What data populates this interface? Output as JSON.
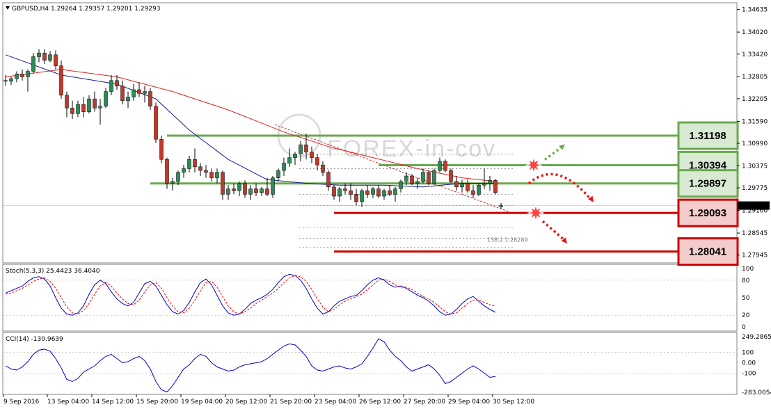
{
  "chart_data": [
    {
      "type": "candlestick",
      "header": "GBPUSD,H4  1.29264 1.29357 1.29201 1.29293",
      "y_ticks": [
        "1.34635",
        "1.34020",
        "1.33420",
        "1.32805",
        "1.32205",
        "1.31590",
        "1.30990",
        "1.30375",
        "1.29775",
        "1.29160",
        "1.28545",
        "1.27945"
      ],
      "ylim": [
        1.2775,
        1.3478
      ],
      "current_price": "1.29293",
      "x_labels": [
        "9 Sep 2016",
        "13 Sep 04:00",
        "14 Sep 12:00",
        "15 Sep 20:00",
        "19 Sep 04:00",
        "20 Sep 12:00",
        "21 Sep 20:00",
        "23 Sep 04:00",
        "26 Sep 12:00",
        "27 Sep 20:00",
        "29 Sep 04:00",
        "30 Sep 12:00"
      ],
      "candles": [
        [
          1.327,
          1.3285,
          1.3255,
          1.3268
        ],
        [
          1.3268,
          1.328,
          1.3258,
          1.3275
        ],
        [
          1.3275,
          1.3295,
          1.3265,
          1.3288
        ],
        [
          1.3288,
          1.33,
          1.327,
          1.328
        ],
        [
          1.328,
          1.33,
          1.324,
          1.3295
        ],
        [
          1.3295,
          1.3345,
          1.329,
          1.3335
        ],
        [
          1.3335,
          1.3355,
          1.332,
          1.3345
        ],
        [
          1.3345,
          1.3355,
          1.3315,
          1.3325
        ],
        [
          1.3325,
          1.335,
          1.332,
          1.334
        ],
        [
          1.334,
          1.3352,
          1.33,
          1.331
        ],
        [
          1.331,
          1.3325,
          1.322,
          1.323
        ],
        [
          1.323,
          1.324,
          1.317,
          1.3195
        ],
        [
          1.3195,
          1.3215,
          1.3165,
          1.318
        ],
        [
          1.318,
          1.3215,
          1.317,
          1.3205
        ],
        [
          1.3205,
          1.3225,
          1.317,
          1.3185
        ],
        [
          1.3185,
          1.323,
          1.318,
          1.322
        ],
        [
          1.322,
          1.324,
          1.3185,
          1.3195
        ],
        [
          1.3195,
          1.322,
          1.315,
          1.32
        ],
        [
          1.32,
          1.325,
          1.3195,
          1.324
        ],
        [
          1.324,
          1.3285,
          1.323,
          1.327
        ],
        [
          1.327,
          1.3285,
          1.3245,
          1.3255
        ],
        [
          1.3255,
          1.327,
          1.3205,
          1.3215
        ],
        [
          1.3215,
          1.324,
          1.3195,
          1.3225
        ],
        [
          1.3225,
          1.326,
          1.3215,
          1.3245
        ],
        [
          1.3245,
          1.3265,
          1.3225,
          1.3235
        ],
        [
          1.3235,
          1.3255,
          1.321,
          1.324
        ],
        [
          1.324,
          1.325,
          1.319,
          1.32
        ],
        [
          1.32,
          1.321,
          1.31,
          1.311
        ],
        [
          1.311,
          1.312,
          1.3045,
          1.3055
        ],
        [
          1.3055,
          1.306,
          1.2975,
          1.299
        ],
        [
          1.299,
          1.3005,
          1.297,
          1.2995
        ],
        [
          1.2995,
          1.3025,
          1.2985,
          1.302
        ],
        [
          1.302,
          1.304,
          1.3005,
          1.303
        ],
        [
          1.303,
          1.3065,
          1.302,
          1.3055
        ],
        [
          1.3055,
          1.3085,
          1.302,
          1.3035
        ],
        [
          1.3035,
          1.3045,
          1.301,
          1.3025
        ],
        [
          1.3025,
          1.304,
          1.3005,
          1.302
        ],
        [
          1.302,
          1.303,
          1.2995,
          1.3005
        ],
        [
          1.3005,
          1.303,
          1.299,
          1.302
        ],
        [
          1.302,
          1.3025,
          1.2945,
          1.296
        ],
        [
          1.296,
          1.2985,
          1.2945,
          1.2975
        ],
        [
          1.2975,
          1.299,
          1.296,
          1.297
        ],
        [
          1.297,
          1.2995,
          1.2955,
          1.299
        ],
        [
          1.299,
          1.2998,
          1.295,
          1.296
        ],
        [
          1.296,
          1.2985,
          1.2945,
          1.2975
        ],
        [
          1.2975,
          1.299,
          1.2955,
          1.2965
        ],
        [
          1.2965,
          1.298,
          1.2955,
          1.2975
        ],
        [
          1.2975,
          1.3005,
          1.2955,
          1.296
        ],
        [
          1.296,
          1.301,
          1.295,
          1.3005
        ],
        [
          1.3005,
          1.303,
          1.2995,
          1.3025
        ],
        [
          1.3025,
          1.306,
          1.301,
          1.3045
        ],
        [
          1.3045,
          1.3085,
          1.3035,
          1.306
        ],
        [
          1.306,
          1.3075,
          1.304,
          1.307
        ],
        [
          1.307,
          1.3105,
          1.305,
          1.3095
        ],
        [
          1.3095,
          1.3125,
          1.3055,
          1.3075
        ],
        [
          1.3075,
          1.309,
          1.3045,
          1.306
        ],
        [
          1.306,
          1.307,
          1.3025,
          1.304
        ],
        [
          1.304,
          1.305,
          1.301,
          1.302
        ],
        [
          1.302,
          1.3025,
          1.297,
          1.298
        ],
        [
          1.298,
          1.2985,
          1.2945,
          1.2955
        ],
        [
          1.2955,
          1.298,
          1.294,
          1.2975
        ],
        [
          1.2975,
          1.299,
          1.296,
          1.297
        ],
        [
          1.297,
          1.299,
          1.2945,
          1.296
        ],
        [
          1.296,
          1.2975,
          1.293,
          1.294
        ],
        [
          1.294,
          1.2975,
          1.2925,
          1.297
        ],
        [
          1.297,
          1.2985,
          1.295,
          1.296
        ],
        [
          1.296,
          1.298,
          1.295,
          1.2975
        ],
        [
          1.2975,
          1.2985,
          1.295,
          1.2955
        ],
        [
          1.2955,
          1.2975,
          1.2945,
          1.297
        ],
        [
          1.297,
          1.2985,
          1.2955,
          1.296
        ],
        [
          1.296,
          1.298,
          1.294,
          1.2975
        ],
        [
          1.2975,
          1.3,
          1.2965,
          1.2995
        ],
        [
          1.2995,
          1.302,
          1.2985,
          1.301
        ],
        [
          1.301,
          1.3015,
          1.2985,
          1.299
        ],
        [
          1.299,
          1.3005,
          1.2975,
          1.2995
        ],
        [
          1.2995,
          1.303,
          1.299,
          1.302
        ],
        [
          1.302,
          1.3025,
          1.2985,
          1.299
        ],
        [
          1.299,
          1.303,
          1.2985,
          1.3025
        ],
        [
          1.3025,
          1.306,
          1.302,
          1.305
        ],
        [
          1.305,
          1.3055,
          1.302,
          1.3025
        ],
        [
          1.3025,
          1.303,
          1.299,
          1.2995
        ],
        [
          1.2995,
          1.301,
          1.297,
          1.298
        ],
        [
          1.298,
          1.3,
          1.2965,
          1.299
        ],
        [
          1.299,
          1.3,
          1.2965,
          1.297
        ],
        [
          1.297,
          1.2985,
          1.295,
          1.296
        ],
        [
          1.296,
          1.299,
          1.2955,
          1.2985
        ],
        [
          1.2985,
          1.303,
          1.2975,
          1.299
        ],
        [
          1.299,
          1.301,
          1.297,
          1.2998
        ],
        [
          1.2998,
          1.3002,
          1.296,
          1.2965
        ],
        [
          1.2926,
          1.2936,
          1.292,
          1.2929
        ]
      ],
      "ma_blue": [
        [
          0,
          1.334
        ],
        [
          10,
          1.3285
        ],
        [
          20,
          1.326
        ],
        [
          27,
          1.322
        ],
        [
          33,
          1.3135
        ],
        [
          40,
          1.3055
        ],
        [
          47,
          1.3
        ],
        [
          54,
          1.299
        ],
        [
          60,
          1.2985
        ],
        [
          68,
          1.2985
        ],
        [
          75,
          1.298
        ],
        [
          82,
          1.299
        ],
        [
          88,
          1.299
        ]
      ],
      "ma_red": [
        [
          0,
          1.328
        ],
        [
          10,
          1.33
        ],
        [
          20,
          1.328
        ],
        [
          30,
          1.324
        ],
        [
          40,
          1.319
        ],
        [
          50,
          1.313
        ],
        [
          58,
          1.309
        ],
        [
          66,
          1.306
        ],
        [
          74,
          1.303
        ],
        [
          82,
          1.3005
        ],
        [
          88,
          1.2995
        ]
      ],
      "levels": [
        {
          "label": "1.31198",
          "value": 1.31198,
          "color": "#6aa84f",
          "from": 29
        },
        {
          "label": "1.30394",
          "value": 1.30394,
          "color": "#6aa84f",
          "from": 67
        },
        {
          "label": "1.29897",
          "value": 1.29897,
          "color": "#6aa84f",
          "from": 26
        },
        {
          "label": "1.29093",
          "value": 1.29093,
          "color": "#cc0000",
          "from": 59
        },
        {
          "label": "1.28041",
          "value": 1.28041,
          "color": "#cc0000",
          "from": 59
        }
      ],
      "fib_lines": [
        1.307,
        1.303,
        1.296,
        1.293,
        1.287,
        1.284,
        1.2815
      ],
      "fib_text": "138.2  1.28289",
      "watermark": "FOREX-in-cov"
    },
    {
      "type": "line",
      "title": "Stoch(5,3,3) 25.4423 36.4040",
      "y_ticks": [
        "100",
        "80",
        "50",
        "20",
        "0"
      ],
      "ylim": [
        0,
        100
      ],
      "series": [
        {
          "color": "#0000cc",
          "values": [
            58,
            62,
            66,
            70,
            78,
            84,
            86,
            82,
            70,
            50,
            32,
            22,
            20,
            24,
            36,
            56,
            72,
            80,
            74,
            60,
            48,
            40,
            36,
            42,
            58,
            74,
            78,
            70,
            54,
            38,
            26,
            22,
            28,
            42,
            60,
            76,
            82,
            72,
            54,
            36,
            24,
            20,
            22,
            30,
            40,
            46,
            50,
            56,
            64,
            76,
            86,
            90,
            88,
            80,
            66,
            48,
            32,
            22,
            26,
            36,
            44,
            48,
            52,
            54,
            62,
            72,
            80,
            84,
            80,
            72,
            68,
            70,
            66,
            60,
            54,
            50,
            44,
            36,
            26,
            20,
            22,
            30,
            40,
            48,
            52,
            44,
            36,
            30,
            25
          ]
        },
        {
          "color": "#ff0000",
          "dashed": true,
          "values": [
            56,
            58,
            62,
            66,
            72,
            78,
            82,
            84,
            78,
            66,
            50,
            34,
            24,
            22,
            28,
            40,
            56,
            70,
            76,
            70,
            58,
            48,
            40,
            38,
            46,
            60,
            72,
            76,
            66,
            50,
            36,
            26,
            24,
            32,
            46,
            62,
            76,
            78,
            68,
            52,
            36,
            26,
            22,
            26,
            32,
            40,
            46,
            52,
            58,
            66,
            76,
            84,
            88,
            86,
            78,
            64,
            48,
            34,
            26,
            30,
            38,
            44,
            48,
            52,
            56,
            64,
            72,
            80,
            82,
            78,
            72,
            68,
            68,
            64,
            58,
            52,
            48,
            42,
            34,
            26,
            22,
            24,
            32,
            40,
            46,
            46,
            42,
            38,
            36
          ]
        }
      ]
    },
    {
      "type": "line",
      "title": "CCI(14) -130.9639",
      "y_ticks": [
        "249.2865",
        "100",
        "0.00",
        "-100",
        "-283.0054"
      ],
      "ylim": [
        -283.0054,
        249.2865
      ],
      "series": [
        {
          "color": "#0000cc",
          "values": [
            -30,
            -60,
            -70,
            -40,
            10,
            80,
            120,
            130,
            110,
            40,
            -50,
            -160,
            -180,
            -150,
            -90,
            -60,
            -30,
            20,
            60,
            80,
            40,
            0,
            10,
            40,
            60,
            20,
            -60,
            -180,
            -260,
            -280,
            -220,
            -140,
            -60,
            -20,
            40,
            80,
            60,
            0,
            -40,
            -60,
            -80,
            -70,
            -40,
            -20,
            -10,
            0,
            10,
            40,
            80,
            120,
            160,
            180,
            170,
            120,
            60,
            -30,
            -70,
            -80,
            -60,
            -40,
            -30,
            -50,
            -60,
            -40,
            -10,
            60,
            140,
            230,
            200,
            120,
            60,
            20,
            -40,
            -80,
            -60,
            -40,
            -20,
            -60,
            -120,
            -200,
            -180,
            -140,
            -100,
            -60,
            -30,
            -60,
            -100,
            -140,
            -131
          ]
        }
      ]
    }
  ]
}
